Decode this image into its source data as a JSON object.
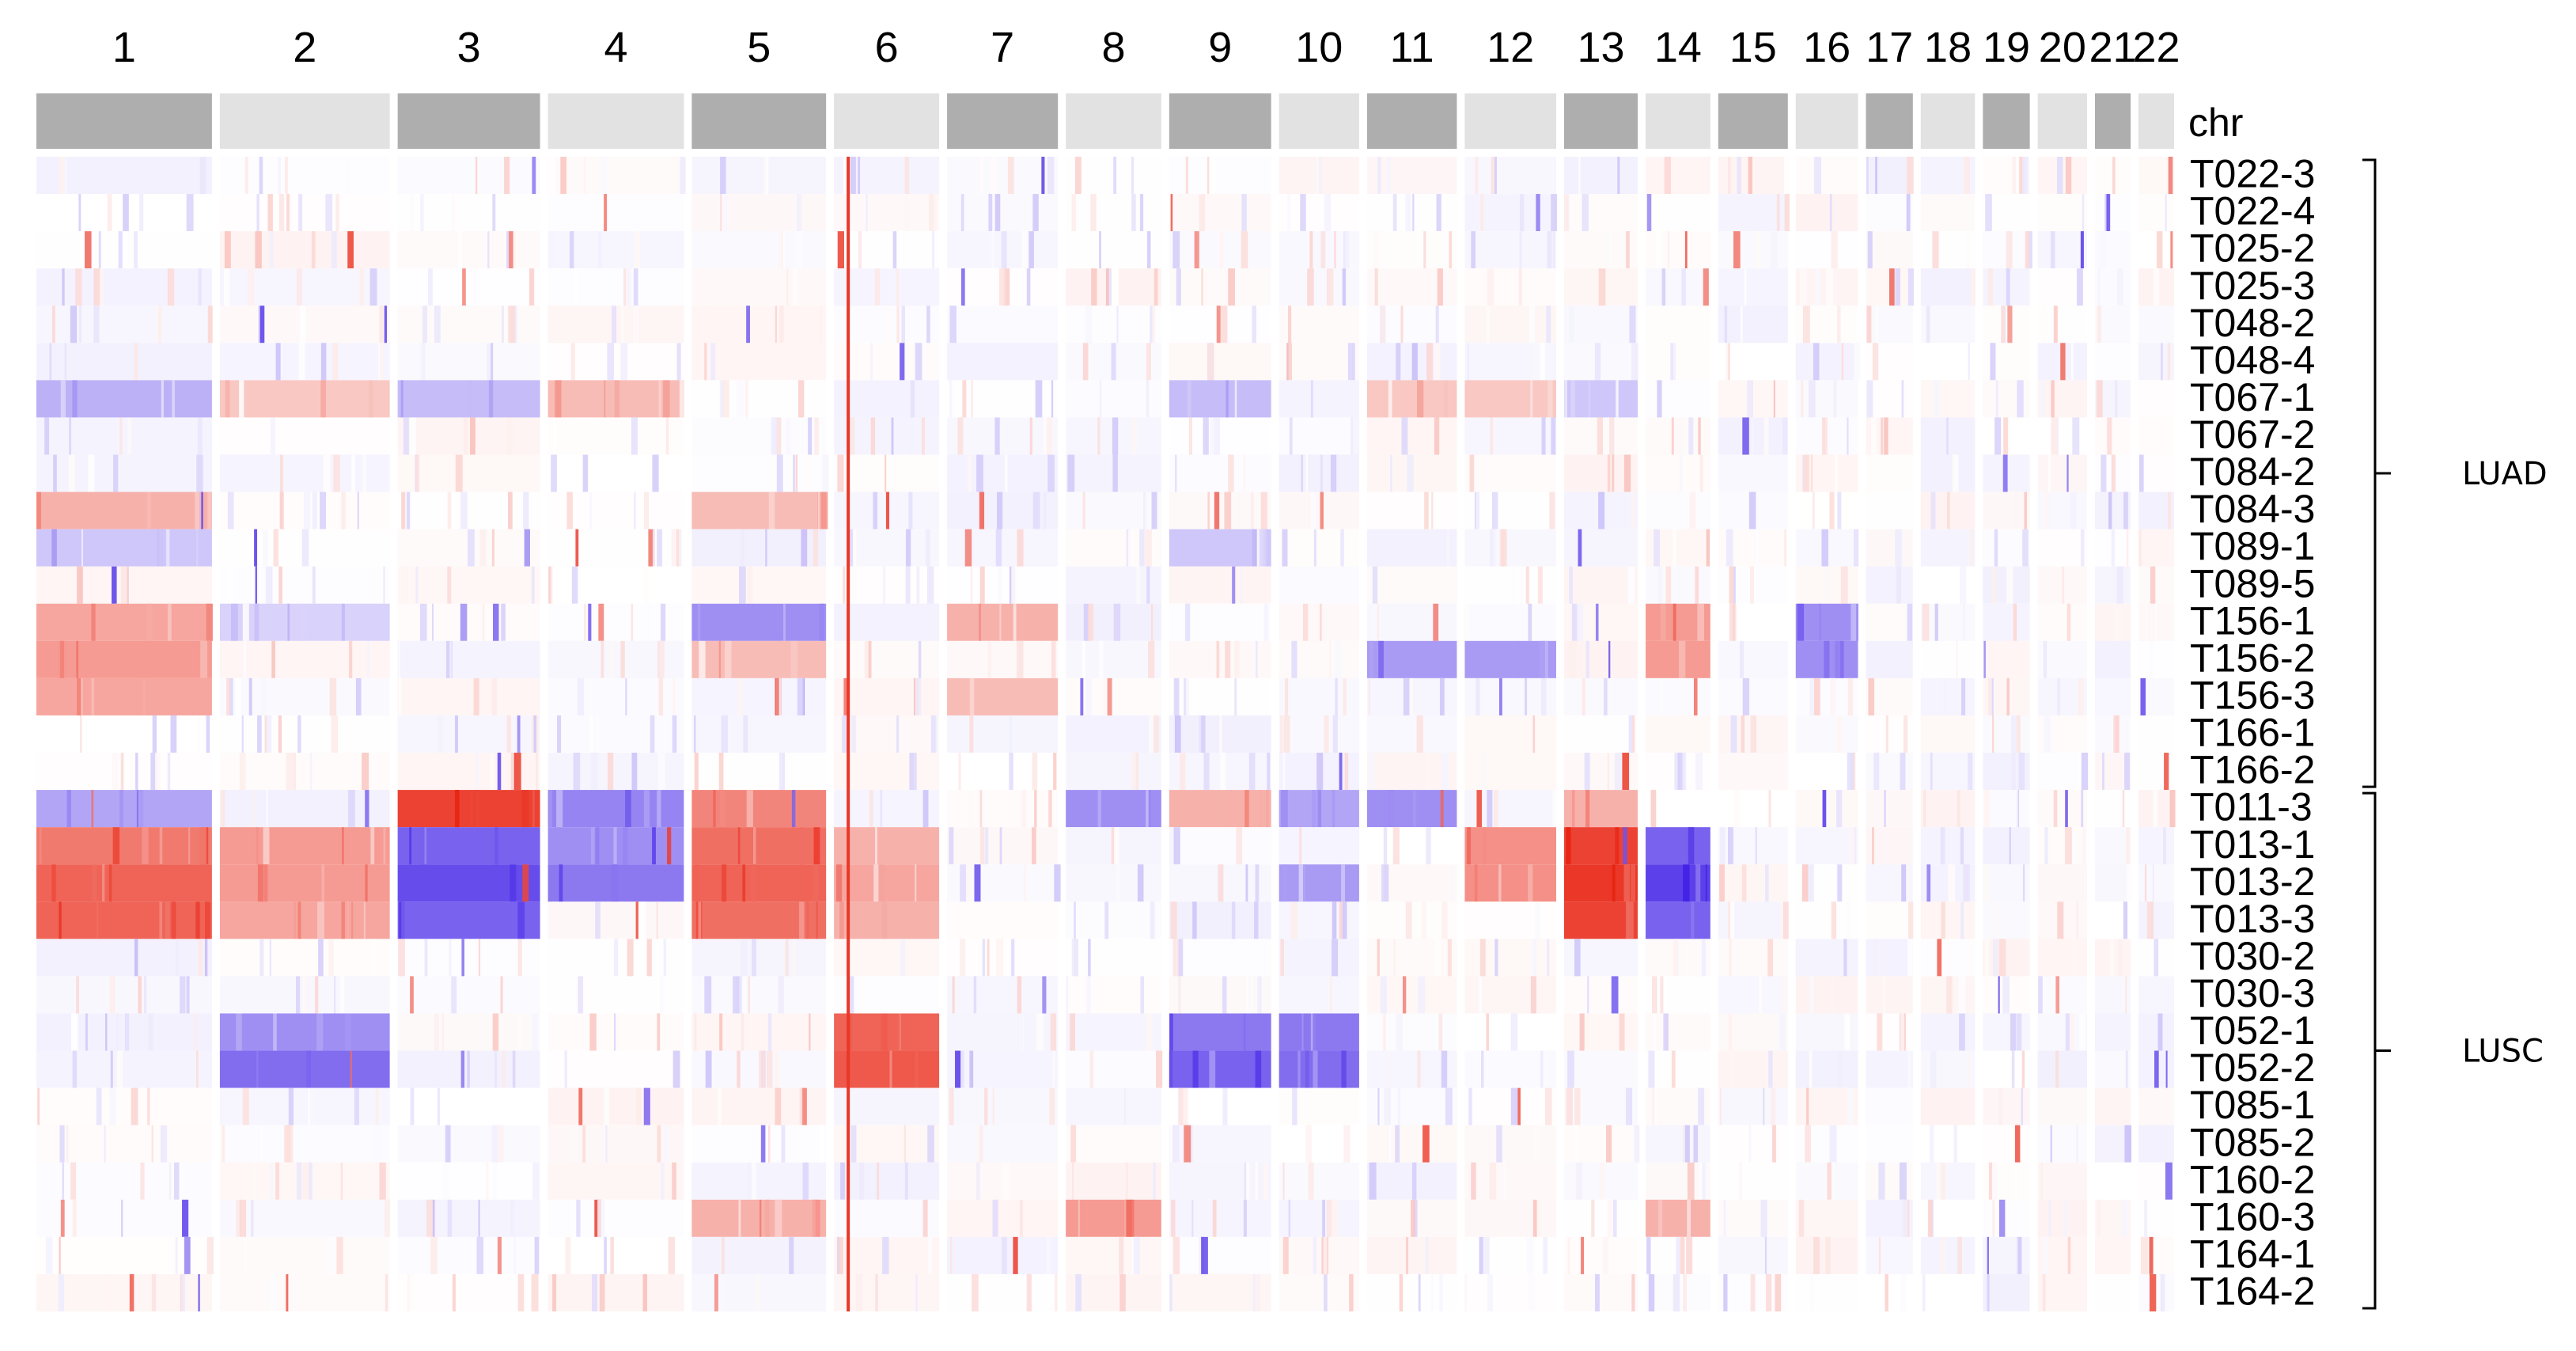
{
  "chart_data": {
    "type": "heatmap",
    "title": "",
    "annotation_track_label": "chr",
    "chromosomes": [
      "1",
      "2",
      "3",
      "4",
      "5",
      "6",
      "7",
      "8",
      "9",
      "10",
      "11",
      "12",
      "13",
      "14",
      "15",
      "16",
      "17",
      "18",
      "19",
      "20",
      "21",
      "22"
    ],
    "samples": [
      "T022-3",
      "T022-4",
      "T025-2",
      "T025-3",
      "T048-2",
      "T048-4",
      "T067-1",
      "T067-2",
      "T084-2",
      "T084-3",
      "T089-1",
      "T089-5",
      "T156-1",
      "T156-2",
      "T156-3",
      "T166-1",
      "T166-2",
      "T011-3",
      "T013-1",
      "T013-2",
      "T013-3",
      "T030-2",
      "T030-3",
      "T052-1",
      "T052-2",
      "T085-1",
      "T085-2",
      "T160-2",
      "T160-3",
      "T164-1",
      "T164-2"
    ],
    "groups": [
      {
        "label": "LUAD",
        "first_sample": "T022-3",
        "last_sample": "T166-2"
      },
      {
        "label": "LUSC",
        "first_sample": "T011-3",
        "last_sample": "T164-2"
      }
    ],
    "color_scale": {
      "low": "#3f1fe6",
      "mid": "#ffffff",
      "high": "#e8210f",
      "min": -1,
      "max": 1
    },
    "chr_track_colors": {
      "odd": "#aeaeae",
      "even": "#e2e2e2"
    },
    "segments": [
      {
        "sample": "T067-1",
        "chr": "1",
        "value": -0.35
      },
      {
        "sample": "T067-1",
        "chr": "2",
        "value": 0.25
      },
      {
        "sample": "T067-1",
        "chr": "3",
        "value": -0.3
      },
      {
        "sample": "T067-1",
        "chr": "4",
        "value": 0.3
      },
      {
        "sample": "T067-1",
        "chr": "9",
        "value": -0.3
      },
      {
        "sample": "T067-1",
        "chr": "11",
        "value": 0.25
      },
      {
        "sample": "T067-1",
        "chr": "12",
        "value": 0.25
      },
      {
        "sample": "T067-1",
        "chr": "13",
        "value": -0.25
      },
      {
        "sample": "T084-3",
        "chr": "1",
        "value": 0.35
      },
      {
        "sample": "T084-3",
        "chr": "5",
        "value": 0.3
      },
      {
        "sample": "T089-1",
        "chr": "1",
        "value": -0.25
      },
      {
        "sample": "T089-1",
        "chr": "9",
        "value": -0.25
      },
      {
        "sample": "T156-1",
        "chr": "1",
        "value": 0.4
      },
      {
        "sample": "T156-1",
        "chr": "2",
        "value": -0.2
      },
      {
        "sample": "T156-1",
        "chr": "5",
        "value": -0.5
      },
      {
        "sample": "T156-1",
        "chr": "7",
        "value": 0.35
      },
      {
        "sample": "T156-1",
        "chr": "14",
        "value": 0.45
      },
      {
        "sample": "T156-1",
        "chr": "16",
        "value": -0.5
      },
      {
        "sample": "T156-2",
        "chr": "1",
        "value": 0.45
      },
      {
        "sample": "T156-2",
        "chr": "5",
        "value": 0.3
      },
      {
        "sample": "T156-2",
        "chr": "11",
        "value": -0.45
      },
      {
        "sample": "T156-2",
        "chr": "12",
        "value": -0.45
      },
      {
        "sample": "T156-2",
        "chr": "14",
        "value": 0.45
      },
      {
        "sample": "T156-2",
        "chr": "16",
        "value": -0.5
      },
      {
        "sample": "T156-3",
        "chr": "1",
        "value": 0.4
      },
      {
        "sample": "T156-3",
        "chr": "7",
        "value": 0.3
      },
      {
        "sample": "T011-3",
        "chr": "1",
        "value": -0.4
      },
      {
        "sample": "T011-3",
        "chr": "3",
        "value": 0.85
      },
      {
        "sample": "T011-3",
        "chr": "4",
        "value": -0.55
      },
      {
        "sample": "T011-3",
        "chr": "5",
        "value": 0.55
      },
      {
        "sample": "T011-3",
        "chr": "8",
        "value": -0.5
      },
      {
        "sample": "T011-3",
        "chr": "9",
        "value": 0.35
      },
      {
        "sample": "T011-3",
        "chr": "10",
        "value": -0.4
      },
      {
        "sample": "T011-3",
        "chr": "11",
        "value": -0.5
      },
      {
        "sample": "T011-3",
        "chr": "13",
        "value": 0.35
      },
      {
        "sample": "T013-1",
        "chr": "1",
        "value": 0.6
      },
      {
        "sample": "T013-1",
        "chr": "2",
        "value": 0.45
      },
      {
        "sample": "T013-1",
        "chr": "3",
        "value": -0.7
      },
      {
        "sample": "T013-1",
        "chr": "4",
        "value": -0.5
      },
      {
        "sample": "T013-1",
        "chr": "5",
        "value": 0.65
      },
      {
        "sample": "T013-1",
        "chr": "6",
        "value": 0.35
      },
      {
        "sample": "T013-1",
        "chr": "12",
        "value": 0.5
      },
      {
        "sample": "T013-1",
        "chr": "13",
        "value": 0.85
      },
      {
        "sample": "T013-1",
        "chr": "14",
        "value": -0.7
      },
      {
        "sample": "T013-2",
        "chr": "1",
        "value": 0.7
      },
      {
        "sample": "T013-2",
        "chr": "2",
        "value": 0.45
      },
      {
        "sample": "T013-2",
        "chr": "3",
        "value": -0.8
      },
      {
        "sample": "T013-2",
        "chr": "4",
        "value": -0.6
      },
      {
        "sample": "T013-2",
        "chr": "5",
        "value": 0.7
      },
      {
        "sample": "T013-2",
        "chr": "6",
        "value": 0.4
      },
      {
        "sample": "T013-2",
        "chr": "10",
        "value": -0.45
      },
      {
        "sample": "T013-2",
        "chr": "12",
        "value": 0.5
      },
      {
        "sample": "T013-2",
        "chr": "13",
        "value": 0.9
      },
      {
        "sample": "T013-2",
        "chr": "14",
        "value": -0.85
      },
      {
        "sample": "T013-3",
        "chr": "1",
        "value": 0.7
      },
      {
        "sample": "T013-3",
        "chr": "2",
        "value": 0.4
      },
      {
        "sample": "T013-3",
        "chr": "3",
        "value": -0.7
      },
      {
        "sample": "T013-3",
        "chr": "5",
        "value": 0.65
      },
      {
        "sample": "T013-3",
        "chr": "6",
        "value": 0.35
      },
      {
        "sample": "T013-3",
        "chr": "13",
        "value": 0.85
      },
      {
        "sample": "T013-3",
        "chr": "14",
        "value": -0.7
      },
      {
        "sample": "T052-1",
        "chr": "2",
        "value": -0.5
      },
      {
        "sample": "T052-1",
        "chr": "6",
        "value": 0.7
      },
      {
        "sample": "T052-1",
        "chr": "9",
        "value": -0.6
      },
      {
        "sample": "T052-1",
        "chr": "10",
        "value": -0.6
      },
      {
        "sample": "T052-2",
        "chr": "2",
        "value": -0.65
      },
      {
        "sample": "T052-2",
        "chr": "6",
        "value": 0.75
      },
      {
        "sample": "T052-2",
        "chr": "9",
        "value": -0.7
      },
      {
        "sample": "T052-2",
        "chr": "10",
        "value": -0.65
      },
      {
        "sample": "T160-3",
        "chr": "5",
        "value": 0.35
      },
      {
        "sample": "T160-3",
        "chr": "8",
        "value": 0.45
      },
      {
        "sample": "T160-3",
        "chr": "14",
        "value": 0.35
      }
    ]
  }
}
